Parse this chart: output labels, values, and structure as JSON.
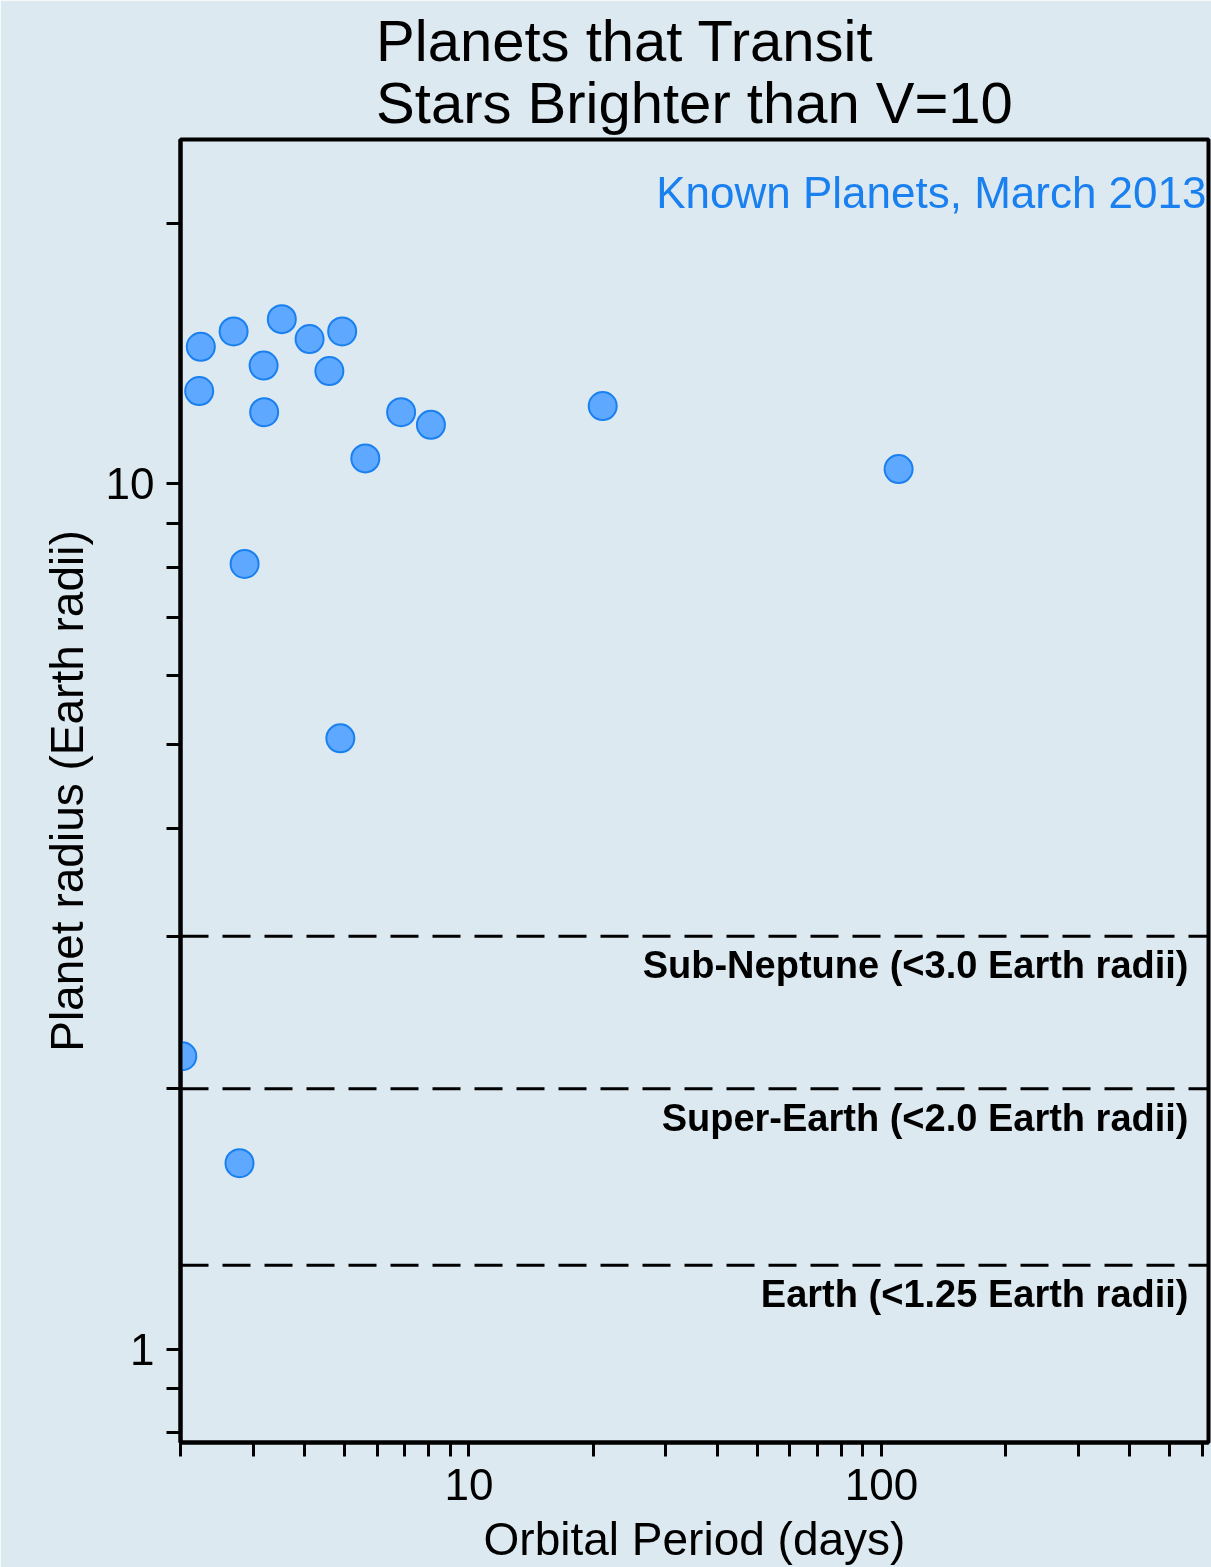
{
  "chart_data": {
    "type": "scatter",
    "title": "Planets that Transit\nStars Brighter than V=10",
    "xlabel": "Orbital Period (days)",
    "ylabel": "Planet radius (Earth radii)",
    "log": "xy",
    "grid": false,
    "marker": "circle",
    "xlim": [
      2,
      620
    ],
    "ylim": [
      0.78,
      25
    ],
    "xticks": [
      {
        "value": 2,
        "label": null
      },
      {
        "value": 3,
        "label": null
      },
      {
        "value": 4,
        "label": null
      },
      {
        "value": 5,
        "label": null
      },
      {
        "value": 6,
        "label": null
      },
      {
        "value": 7,
        "label": null
      },
      {
        "value": 8,
        "label": null
      },
      {
        "value": 9,
        "label": null
      },
      10,
      {
        "value": 20,
        "label": null
      },
      {
        "value": 30,
        "label": null
      },
      {
        "value": 40,
        "label": null
      },
      {
        "value": 50,
        "label": null
      },
      {
        "value": 60,
        "label": null
      },
      {
        "value": 70,
        "label": null
      },
      {
        "value": 80,
        "label": null
      },
      {
        "value": 90,
        "label": null
      },
      100,
      {
        "value": 200,
        "label": null
      },
      {
        "value": 300,
        "label": null
      },
      {
        "value": 400,
        "label": null
      },
      {
        "value": 500,
        "label": null
      },
      {
        "value": 600,
        "label": null
      }
    ],
    "yticks": [
      {
        "value": 0.8,
        "label": null
      },
      {
        "value": 0.9,
        "label": null
      },
      1,
      {
        "value": 2,
        "label": null
      },
      {
        "value": 3,
        "label": null
      },
      {
        "value": 4,
        "label": null
      },
      {
        "value": 5,
        "label": null
      },
      {
        "value": 6,
        "label": null
      },
      {
        "value": 7,
        "label": null
      },
      {
        "value": 8,
        "label": null
      },
      {
        "value": 9,
        "label": null
      },
      10,
      {
        "value": 20,
        "label": null
      }
    ],
    "series": [
      {
        "color": "#5fa8ff",
        "x": [
          2.24,
          2.22,
          2.69,
          3.52,
          3.18,
          3.19,
          4.11,
          4.59,
          4.93,
          5.61,
          6.85,
          8.09,
          21.1,
          110,
          2.86,
          4.88,
          2.02,
          2.78
        ],
        "values": [
          14.4,
          12.8,
          15.0,
          15.5,
          13.7,
          12.1,
          14.7,
          13.5,
          15.0,
          10.7,
          12.1,
          11.7,
          12.3,
          10.4,
          8.08,
          5.08,
          2.18,
          1.64
        ]
      }
    ],
    "ref_lines": [
      {
        "axis": "y",
        "value": 3.0,
        "label": "Sub-Neptune (<3.0 Earth radii)",
        "color": "#000000",
        "line_style": "dashed"
      },
      {
        "axis": "y",
        "value": 2.0,
        "label": "Super-Earth (<2.0 Earth radii)",
        "color": "#000000",
        "line_style": "dashed"
      },
      {
        "axis": "y",
        "value": 1.25,
        "label": "Earth (<1.25 Earth radii)",
        "color": "#000000",
        "line_style": "dashed"
      }
    ],
    "annotations": [
      "Known Planets, March 2013"
    ]
  }
}
